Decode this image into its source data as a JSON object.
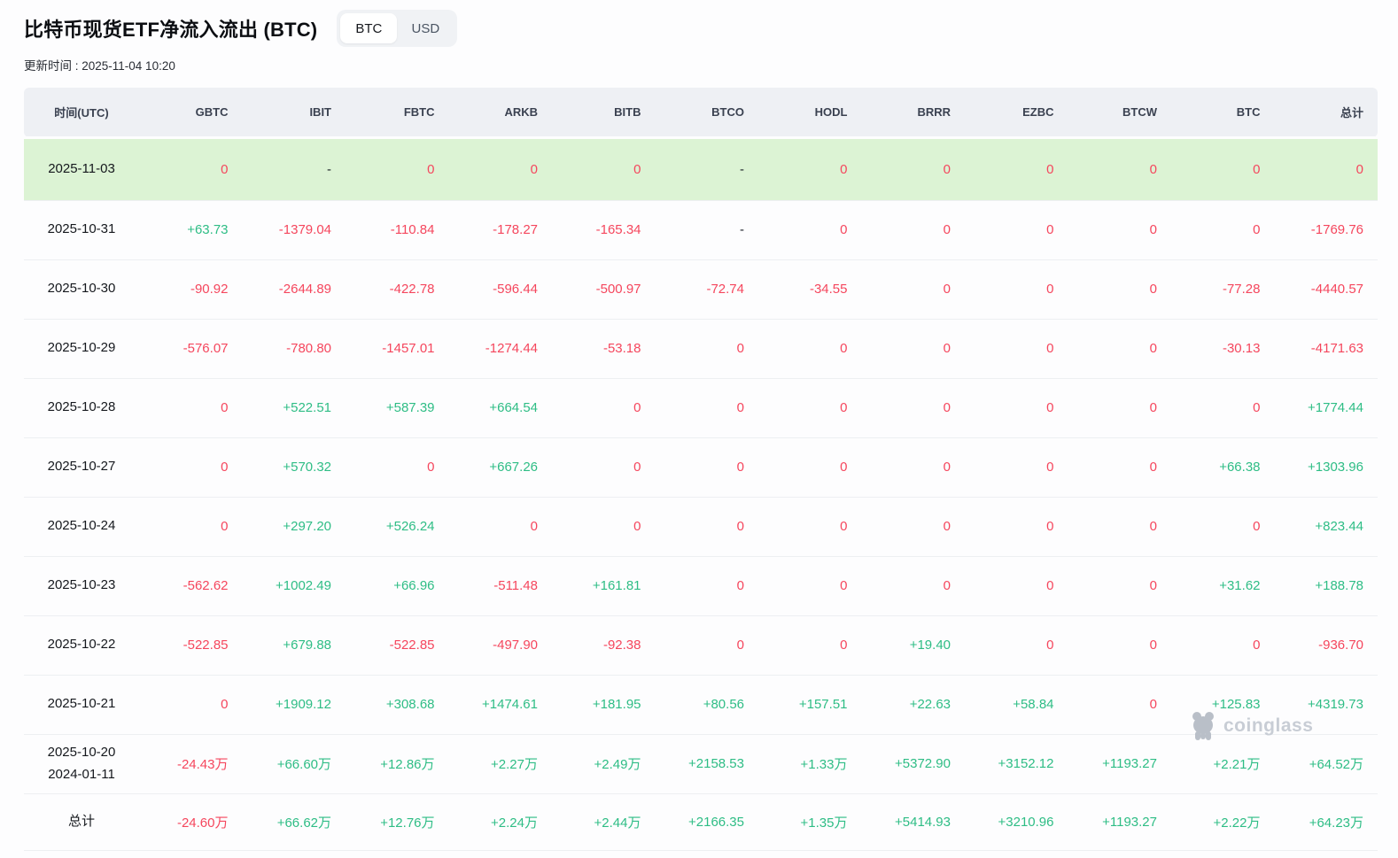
{
  "colors": {
    "positive": "#2ebd85",
    "negative": "#f5465d",
    "neutral": "#1e2329",
    "highlight_row_bg": "#dcf3d4",
    "header_bg": "#eef0f4"
  },
  "page": {
    "title": "比特币现货ETF净流入流出 (BTC)",
    "updated": "更新时间 : 2025-11-04 10:20",
    "unit_toggle": {
      "options": [
        "BTC",
        "USD"
      ],
      "selected": "BTC"
    },
    "watermark": "coinglass"
  },
  "table": {
    "columns": [
      "时间(UTC)",
      "GBTC",
      "IBIT",
      "FBTC",
      "ARKB",
      "BITB",
      "BTCO",
      "HODL",
      "BRRR",
      "EZBC",
      "BTCW",
      "BTC",
      "总计"
    ],
    "rows": [
      {
        "dates": [
          "2025-11-03"
        ],
        "highlight": true,
        "values": [
          "0",
          "-",
          "0",
          "0",
          "0",
          "-",
          "0",
          "0",
          "0",
          "0",
          "0",
          "0"
        ]
      },
      {
        "dates": [
          "2025-10-31"
        ],
        "values": [
          "+63.73",
          "-1379.04",
          "-110.84",
          "-178.27",
          "-165.34",
          "-",
          "0",
          "0",
          "0",
          "0",
          "0",
          "-1769.76"
        ]
      },
      {
        "dates": [
          "2025-10-30"
        ],
        "values": [
          "-90.92",
          "-2644.89",
          "-422.78",
          "-596.44",
          "-500.97",
          "-72.74",
          "-34.55",
          "0",
          "0",
          "0",
          "-77.28",
          "-4440.57"
        ]
      },
      {
        "dates": [
          "2025-10-29"
        ],
        "values": [
          "-576.07",
          "-780.80",
          "-1457.01",
          "-1274.44",
          "-53.18",
          "0",
          "0",
          "0",
          "0",
          "0",
          "-30.13",
          "-4171.63"
        ]
      },
      {
        "dates": [
          "2025-10-28"
        ],
        "values": [
          "0",
          "+522.51",
          "+587.39",
          "+664.54",
          "0",
          "0",
          "0",
          "0",
          "0",
          "0",
          "0",
          "+1774.44"
        ]
      },
      {
        "dates": [
          "2025-10-27"
        ],
        "values": [
          "0",
          "+570.32",
          "0",
          "+667.26",
          "0",
          "0",
          "0",
          "0",
          "0",
          "0",
          "+66.38",
          "+1303.96"
        ]
      },
      {
        "dates": [
          "2025-10-24"
        ],
        "values": [
          "0",
          "+297.20",
          "+526.24",
          "0",
          "0",
          "0",
          "0",
          "0",
          "0",
          "0",
          "0",
          "+823.44"
        ]
      },
      {
        "dates": [
          "2025-10-23"
        ],
        "values": [
          "-562.62",
          "+1002.49",
          "+66.96",
          "-511.48",
          "+161.81",
          "0",
          "0",
          "0",
          "0",
          "0",
          "+31.62",
          "+188.78"
        ]
      },
      {
        "dates": [
          "2025-10-22"
        ],
        "values": [
          "-522.85",
          "+679.88",
          "-522.85",
          "-497.90",
          "-92.38",
          "0",
          "0",
          "+19.40",
          "0",
          "0",
          "0",
          "-936.70"
        ]
      },
      {
        "dates": [
          "2025-10-21"
        ],
        "values": [
          "0",
          "+1909.12",
          "+308.68",
          "+1474.61",
          "+181.95",
          "+80.56",
          "+157.51",
          "+22.63",
          "+58.84",
          "0",
          "+125.83",
          "+4319.73"
        ]
      },
      {
        "dates": [
          "2025-10-20",
          "2024-01-11"
        ],
        "values": [
          "-24.43万",
          "+66.60万",
          "+12.86万",
          "+2.27万",
          "+2.49万",
          "+2158.53",
          "+1.33万",
          "+5372.90",
          "+3152.12",
          "+1193.27",
          "+2.21万",
          "+64.52万"
        ]
      },
      {
        "dates": [
          "总计"
        ],
        "total": true,
        "values": [
          "-24.60万",
          "+66.62万",
          "+12.76万",
          "+2.24万",
          "+2.44万",
          "+2166.35",
          "+1.35万",
          "+5414.93",
          "+3210.96",
          "+1193.27",
          "+2.22万",
          "+64.23万"
        ]
      }
    ]
  }
}
